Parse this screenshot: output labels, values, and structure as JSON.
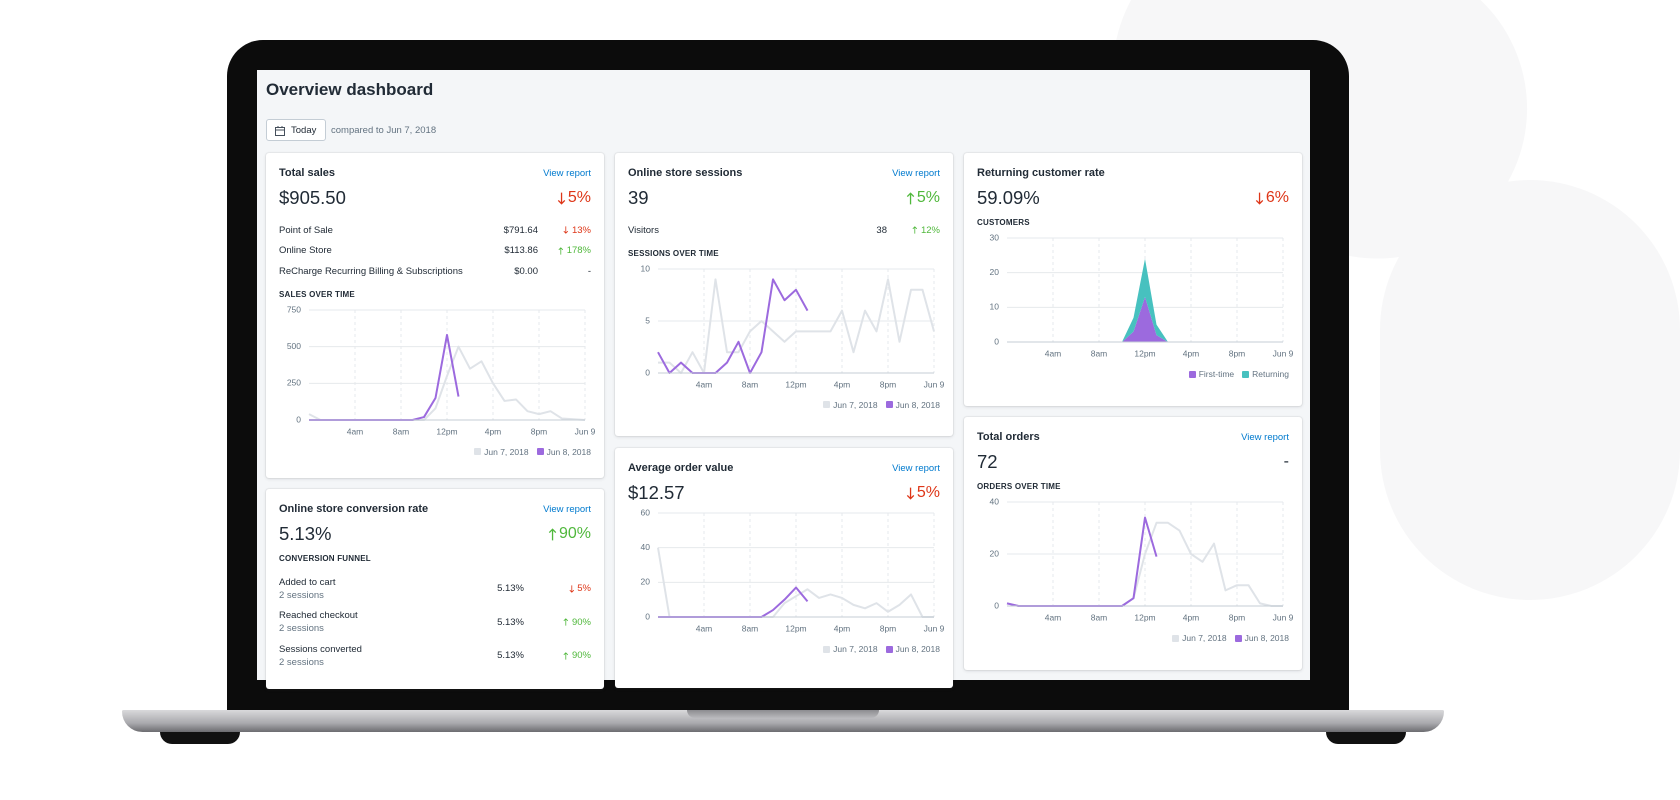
{
  "header": {
    "title": "Overview dashboard",
    "date_button": "Today",
    "compared": "compared to Jun 7, 2018"
  },
  "cards": [
    {
      "title": "Total sales",
      "link": "View report",
      "value": "$905.50",
      "change": "5%",
      "trend": "down",
      "rows": [
        {
          "label": "Point of Sale",
          "amount": "$791.64",
          "change": "13%",
          "trend": "down"
        },
        {
          "label": "Online Store",
          "amount": "$113.86",
          "change": "178%",
          "trend": "up"
        },
        {
          "label": "ReCharge Recurring Billing & Subscriptions",
          "amount": "$0.00",
          "change": "-"
        }
      ],
      "section": "SALES OVER TIME",
      "chart": {
        "type": "line",
        "categories": [
          null,
          null,
          null,
          null,
          "4am",
          null,
          null,
          null,
          "8am",
          null,
          null,
          null,
          "12pm",
          null,
          null,
          null,
          "4pm",
          null,
          null,
          null,
          "8pm",
          null,
          null,
          null,
          "Jun 9"
        ],
        "series": [
          {
            "name": "Jun 7, 2018",
            "color": "#dfe3e8",
            "values": [
              40,
              0,
              0,
              0,
              0,
              0,
              0,
              0,
              0,
              0,
              0,
              80,
              300,
              500,
              350,
              400,
              250,
              130,
              140,
              60,
              40,
              60,
              10,
              5,
              0
            ]
          },
          {
            "name": "Jun 8, 2018",
            "color": "#9c6ade",
            "values": [
              0,
              0,
              0,
              0,
              0,
              0,
              0,
              0,
              0,
              0,
              20,
              150,
              580,
              160,
              null,
              null,
              null,
              null,
              null,
              null,
              null,
              null,
              null,
              null,
              null
            ]
          }
        ],
        "ylim": [
          0,
          750
        ],
        "yticks": [
          0,
          250,
          500,
          750
        ]
      }
    },
    {
      "title": "Online store conversion rate",
      "link": "View report",
      "value": "5.13%",
      "change": "90%",
      "trend": "up",
      "section": "CONVERSION FUNNEL",
      "funnel": [
        {
          "label": "Added to cart",
          "sub": "2 sessions",
          "rate": "5.13%",
          "change": "5%",
          "trend": "down"
        },
        {
          "label": "Reached checkout",
          "sub": "2 sessions",
          "rate": "5.13%",
          "change": "90%",
          "trend": "up"
        },
        {
          "label": "Sessions converted",
          "sub": "2 sessions",
          "rate": "5.13%",
          "change": "90%",
          "trend": "up"
        }
      ]
    },
    {
      "title": "Online store sessions",
      "link": "View report",
      "value": "39",
      "change": "5%",
      "trend": "up",
      "rows": [
        {
          "label": "Visitors",
          "amount": "38",
          "change": "12%",
          "trend": "up"
        }
      ],
      "section": "SESSIONS OVER TIME",
      "chart": {
        "type": "line",
        "categories": [
          null,
          null,
          null,
          null,
          "4am",
          null,
          null,
          null,
          "8am",
          null,
          null,
          null,
          "12pm",
          null,
          null,
          null,
          "4pm",
          null,
          null,
          null,
          "8pm",
          null,
          null,
          null,
          "Jun 9"
        ],
        "series": [
          {
            "name": "Jun 7, 2018",
            "color": "#dfe3e8",
            "values": [
              1,
              1,
              0,
              2,
              0,
              9,
              2,
              2,
              4,
              5,
              4,
              3,
              4,
              4,
              4,
              4,
              6,
              2,
              6,
              4,
              9,
              3,
              8,
              8,
              4
            ]
          },
          {
            "name": "Jun 8, 2018",
            "color": "#9c6ade",
            "values": [
              2,
              0,
              1,
              0,
              0,
              0,
              1,
              3,
              0,
              2,
              9,
              7,
              8,
              6,
              null,
              null,
              null,
              null,
              null,
              null,
              null,
              null,
              null,
              null,
              null
            ]
          }
        ],
        "ylim": [
          0,
          10
        ],
        "yticks": [
          0,
          5,
          10
        ]
      }
    },
    {
      "title": "Average order value",
      "link": "View report",
      "value": "$12.57",
      "change": "5%",
      "trend": "down",
      "chart": {
        "type": "line",
        "categories": [
          null,
          null,
          null,
          null,
          "4am",
          null,
          null,
          null,
          "8am",
          null,
          null,
          null,
          "12pm",
          null,
          null,
          null,
          "4pm",
          null,
          null,
          null,
          "8pm",
          null,
          null,
          null,
          "Jun 9"
        ],
        "series": [
          {
            "name": "Jun 7, 2018",
            "color": "#dfe3e8",
            "values": [
              40,
              0,
              0,
              0,
              0,
              0,
              0,
              0,
              0,
              0,
              0,
              8,
              12,
              16,
              11,
              13,
              11,
              7,
              5,
              8,
              3,
              7,
              13,
              0,
              0
            ]
          },
          {
            "name": "Jun 8, 2018",
            "color": "#9c6ade",
            "values": [
              0,
              0,
              0,
              0,
              0,
              0,
              0,
              0,
              0,
              0,
              4,
              10,
              17,
              9,
              null,
              null,
              null,
              null,
              null,
              null,
              null,
              null,
              null,
              null,
              null
            ]
          }
        ],
        "ylim": [
          0,
          60
        ],
        "yticks": [
          0,
          20,
          40,
          60
        ]
      }
    },
    {
      "title": "Returning customer rate",
      "value": "59.09%",
      "change": "6%",
      "trend": "down",
      "section": "CUSTOMERS",
      "chart": {
        "type": "stacked-area",
        "categories": [
          null,
          null,
          null,
          null,
          "4am",
          null,
          null,
          null,
          "8am",
          null,
          null,
          null,
          "12pm",
          null,
          null,
          null,
          "4pm",
          null,
          null,
          null,
          "8pm",
          null,
          null,
          null,
          "Jun 9"
        ],
        "series": [
          {
            "name": "First-time",
            "color": "#9c6ade",
            "values": [
              0,
              0,
              0,
              0,
              0,
              0,
              0,
              0,
              0,
              0,
              0,
              3,
              13,
              2,
              0,
              0,
              0,
              0,
              0,
              0,
              0,
              0,
              0,
              0,
              0
            ]
          },
          {
            "name": "Returning",
            "color": "#47c1bf",
            "values": [
              0,
              0,
              0,
              0,
              0,
              0,
              0,
              0,
              0,
              0,
              0,
              4,
              11,
              3,
              0,
              0,
              0,
              0,
              0,
              0,
              0,
              0,
              0,
              0,
              0
            ]
          }
        ],
        "ylim": [
          0,
          30
        ],
        "yticks": [
          0,
          10,
          20,
          30
        ]
      }
    },
    {
      "title": "Total orders",
      "link": "View report",
      "value": "72",
      "change": "-",
      "section": "ORDERS OVER TIME",
      "chart": {
        "type": "line",
        "categories": [
          null,
          null,
          null,
          null,
          "4am",
          null,
          null,
          null,
          "8am",
          null,
          null,
          null,
          "12pm",
          null,
          null,
          null,
          "4pm",
          null,
          null,
          null,
          "8pm",
          null,
          null,
          null,
          "Jun 9"
        ],
        "series": [
          {
            "name": "Jun 7, 2018",
            "color": "#dfe3e8",
            "values": [
              1,
              0,
              0,
              0,
              0,
              0,
              0,
              0,
              0,
              0,
              0,
              3,
              20,
              32,
              32,
              29,
              20,
              17,
              24,
              6,
              8,
              8,
              1,
              0,
              0
            ]
          },
          {
            "name": "Jun 8, 2018",
            "color": "#9c6ade",
            "values": [
              1,
              0,
              0,
              0,
              0,
              0,
              0,
              0,
              0,
              0,
              0,
              3,
              34,
              19,
              null,
              null,
              null,
              null,
              null,
              null,
              null,
              null,
              null,
              null,
              null
            ]
          }
        ],
        "ylim": [
          0,
          40
        ],
        "yticks": [
          0,
          20,
          40
        ]
      }
    }
  ]
}
